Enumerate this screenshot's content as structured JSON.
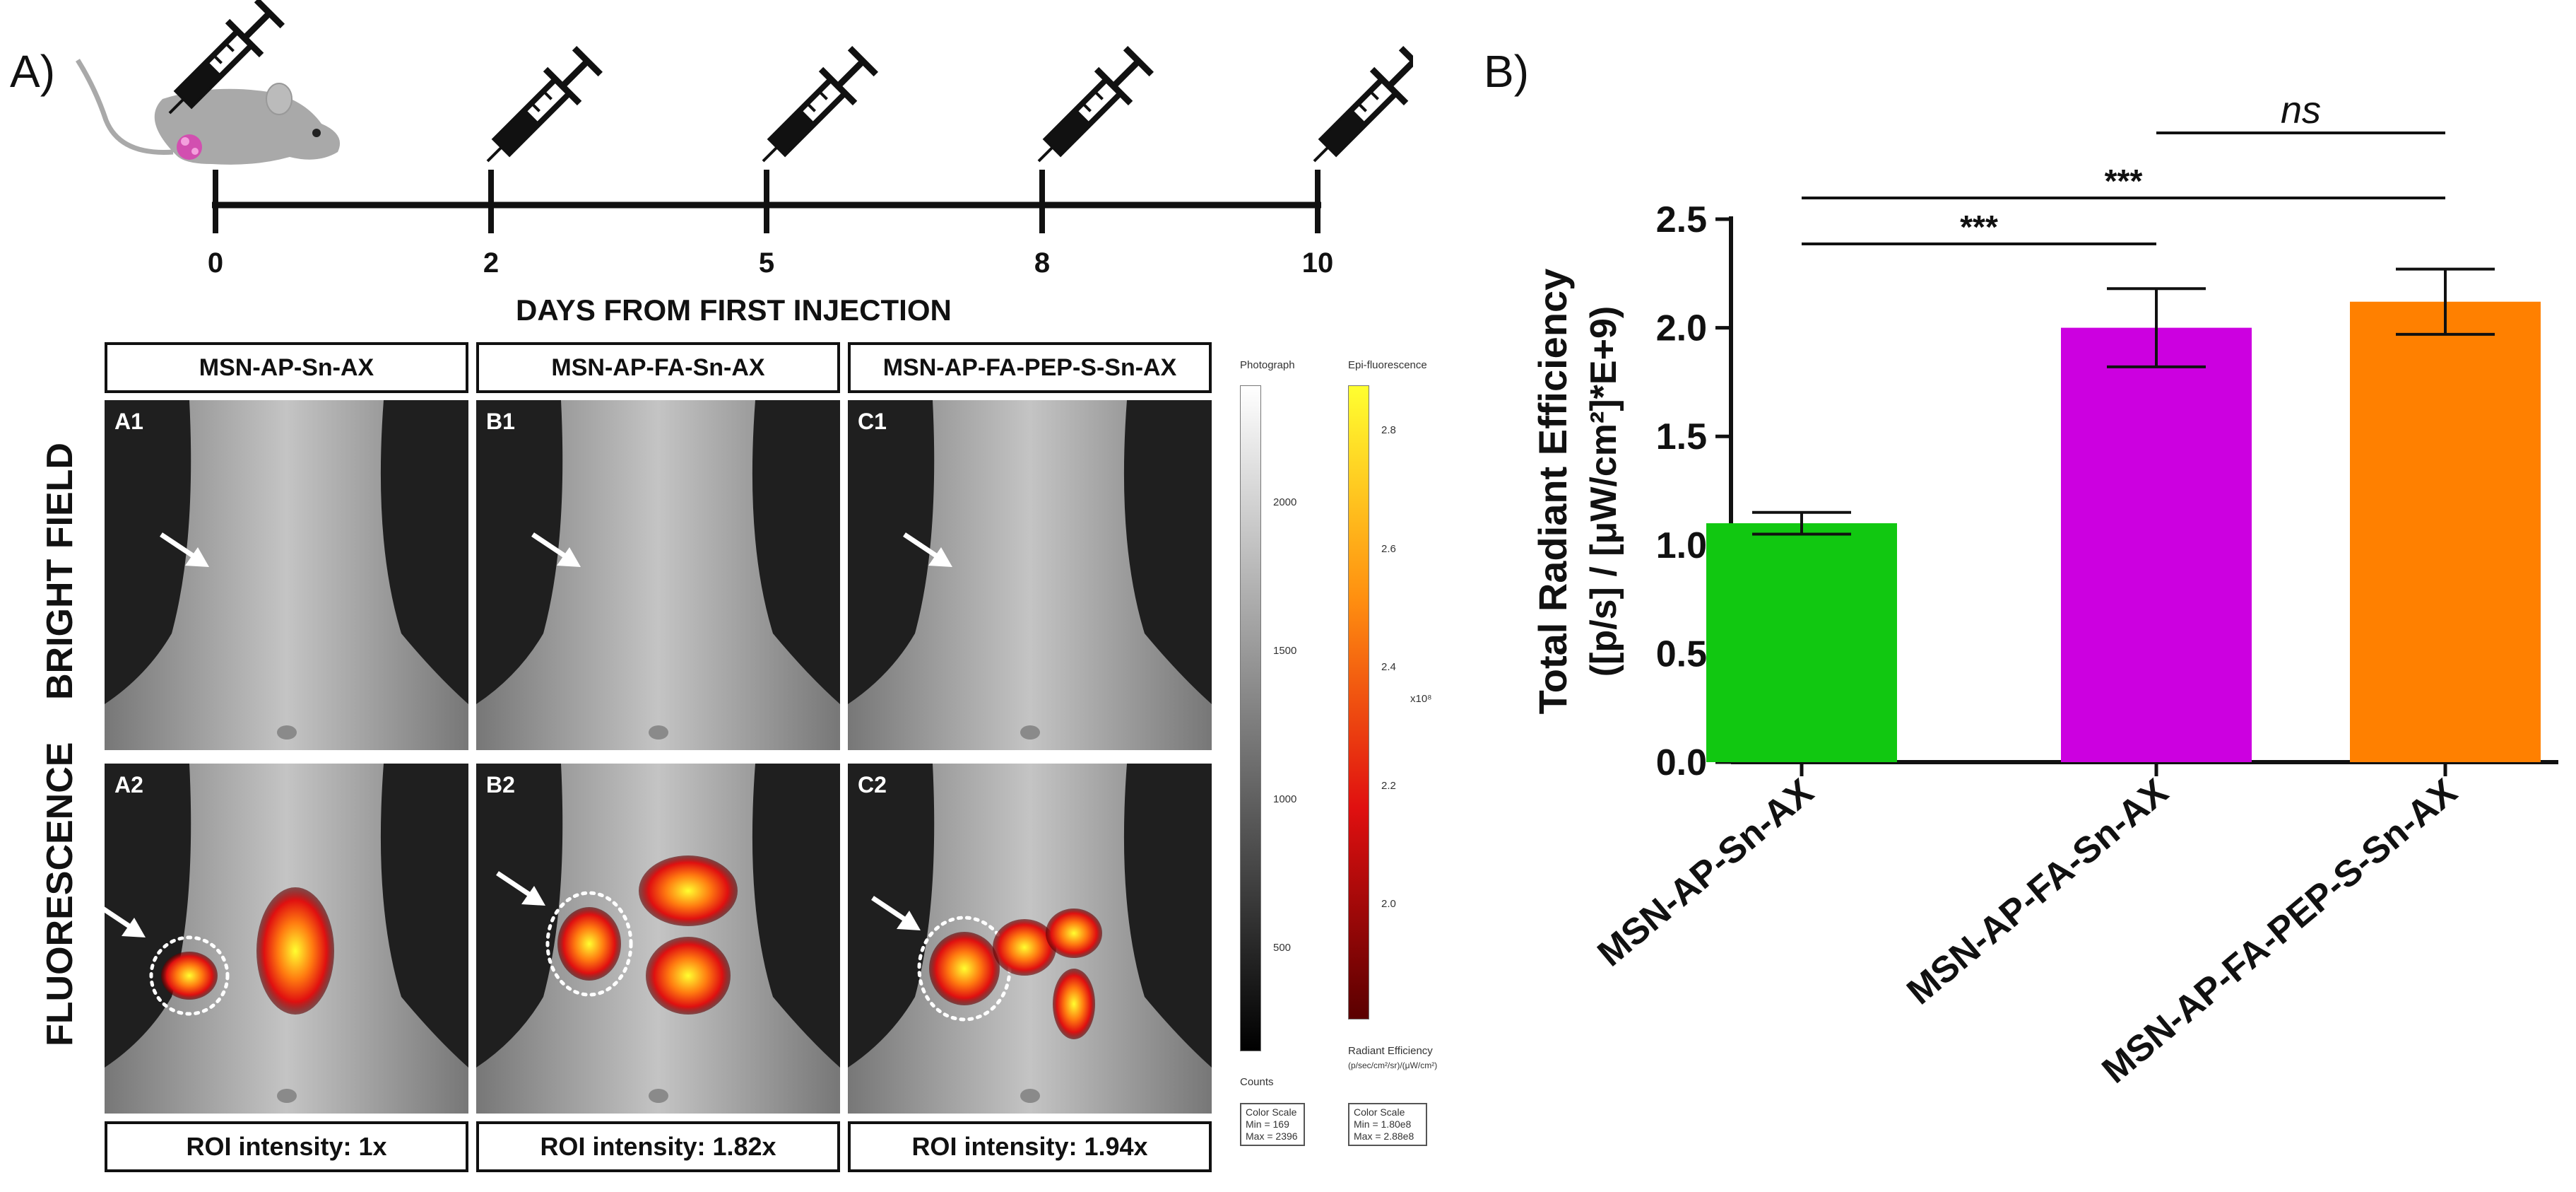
{
  "panel_a": {
    "label": "A)",
    "timeline": {
      "days": [
        "0",
        "2",
        "5",
        "8",
        "10"
      ],
      "axis_title": "DAYS FROM FIRST INJECTION",
      "syringe_icon": "syringe-icon",
      "mouse_icon": "mouse-icon"
    },
    "columns": [
      {
        "header": "MSN-AP-Sn-AX",
        "bf_tag": "A1",
        "fl_tag": "A2",
        "roi": "ROI intensity: 1x"
      },
      {
        "header": "MSN-AP-FA-Sn-AX",
        "bf_tag": "B1",
        "fl_tag": "B2",
        "roi": "ROI intensity: 1.82x"
      },
      {
        "header": "MSN-AP-FA-PEP-S-Sn-AX",
        "bf_tag": "C1",
        "fl_tag": "C2",
        "roi": "ROI intensity: 1.94x"
      }
    ],
    "row_labels": {
      "bright": "BRIGHT FIELD",
      "fluor": "FLUORESCENCE"
    },
    "photo_scale": {
      "title": "Photograph",
      "ticks": [
        "2000",
        "1500",
        "1000",
        "500"
      ],
      "units": "Counts",
      "box_title": "Color Scale",
      "box_min": "Min = 169",
      "box_max": "Max = 2396"
    },
    "fluor_scale": {
      "title": "Epi-fluorescence",
      "ticks": [
        "2.8",
        "2.6",
        "2.4",
        "2.2",
        "2.0"
      ],
      "multiplier": "x10⁸",
      "units_line1": "Radiant Efficiency",
      "units_line2": "(p/sec/cm²/sr)/(μW/cm²)",
      "box_title": "Color Scale",
      "box_min": "Min = 1.80e8",
      "box_max": "Max = 2.88e8"
    },
    "colors": {
      "heat_low": "#5a0000",
      "heat_mid": "#e01010",
      "heat_high": "#ffff30"
    }
  },
  "panel_b": {
    "label": "B)"
  },
  "chart_data": {
    "type": "bar",
    "categories": [
      "MSN-AP-Sn-AX",
      "MSN-AP-FA-Sn-AX",
      "MSN-AP-FA-PEP-S-Sn-AX"
    ],
    "values": [
      1.1,
      2.0,
      2.12
    ],
    "errors": [
      0.05,
      0.18,
      0.15
    ],
    "colors": [
      "#11c811",
      "#cc00e0",
      "#ff8000"
    ],
    "ylabel_line1": "Total Radiant Efficiency",
    "ylabel_line2": "([p/s] / [μW/cm²]*E+9)",
    "ylim": [
      0,
      2.5
    ],
    "yticks": [
      "0.0",
      "0.5",
      "1.0",
      "1.5",
      "2.0",
      "2.5"
    ],
    "significance": [
      {
        "from": 0,
        "to": 1,
        "label": "***"
      },
      {
        "from": 0,
        "to": 2,
        "label": "***"
      },
      {
        "from": 1,
        "to": 2,
        "label": "ns"
      }
    ]
  }
}
